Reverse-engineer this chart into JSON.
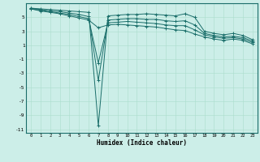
{
  "xlabel": "Humidex (Indice chaleur)",
  "bg_color": "#cceee8",
  "grid_major_color": "#aaddcc",
  "grid_minor_color": "#bbdddd",
  "line_color": "#1a6e6a",
  "xlim": [
    -0.5,
    23.5
  ],
  "ylim": [
    -11.5,
    7.0
  ],
  "yticks": [
    5,
    3,
    1,
    -1,
    -3,
    -5,
    -7,
    -9,
    -11
  ],
  "xticks": [
    0,
    1,
    2,
    3,
    4,
    5,
    6,
    7,
    8,
    9,
    10,
    11,
    12,
    13,
    14,
    15,
    16,
    17,
    18,
    19,
    20,
    21,
    22,
    23
  ],
  "series": [
    [
      6.3,
      6.2,
      6.1,
      6.0,
      5.9,
      5.8,
      5.7,
      -10.5,
      5.2,
      5.3,
      5.4,
      5.4,
      5.5,
      5.4,
      5.3,
      5.2,
      5.5,
      5.0,
      3.0,
      2.7,
      2.5,
      2.7,
      2.4,
      1.8
    ],
    [
      6.3,
      6.1,
      5.9,
      5.8,
      5.6,
      5.4,
      5.1,
      -4.0,
      4.6,
      4.7,
      4.8,
      4.8,
      4.7,
      4.7,
      4.5,
      4.4,
      4.5,
      3.9,
      2.7,
      2.4,
      2.2,
      2.3,
      2.1,
      1.6
    ],
    [
      6.2,
      6.0,
      5.8,
      5.6,
      5.4,
      5.1,
      4.8,
      -1.5,
      4.2,
      4.3,
      4.4,
      4.3,
      4.2,
      4.1,
      3.9,
      3.8,
      3.8,
      3.2,
      2.5,
      2.2,
      2.0,
      2.1,
      1.9,
      1.4
    ],
    [
      6.2,
      5.9,
      5.7,
      5.5,
      5.2,
      4.9,
      4.6,
      3.5,
      3.9,
      4.0,
      3.9,
      3.8,
      3.7,
      3.6,
      3.4,
      3.2,
      3.1,
      2.6,
      2.2,
      1.9,
      1.7,
      1.9,
      1.7,
      1.2
    ]
  ]
}
